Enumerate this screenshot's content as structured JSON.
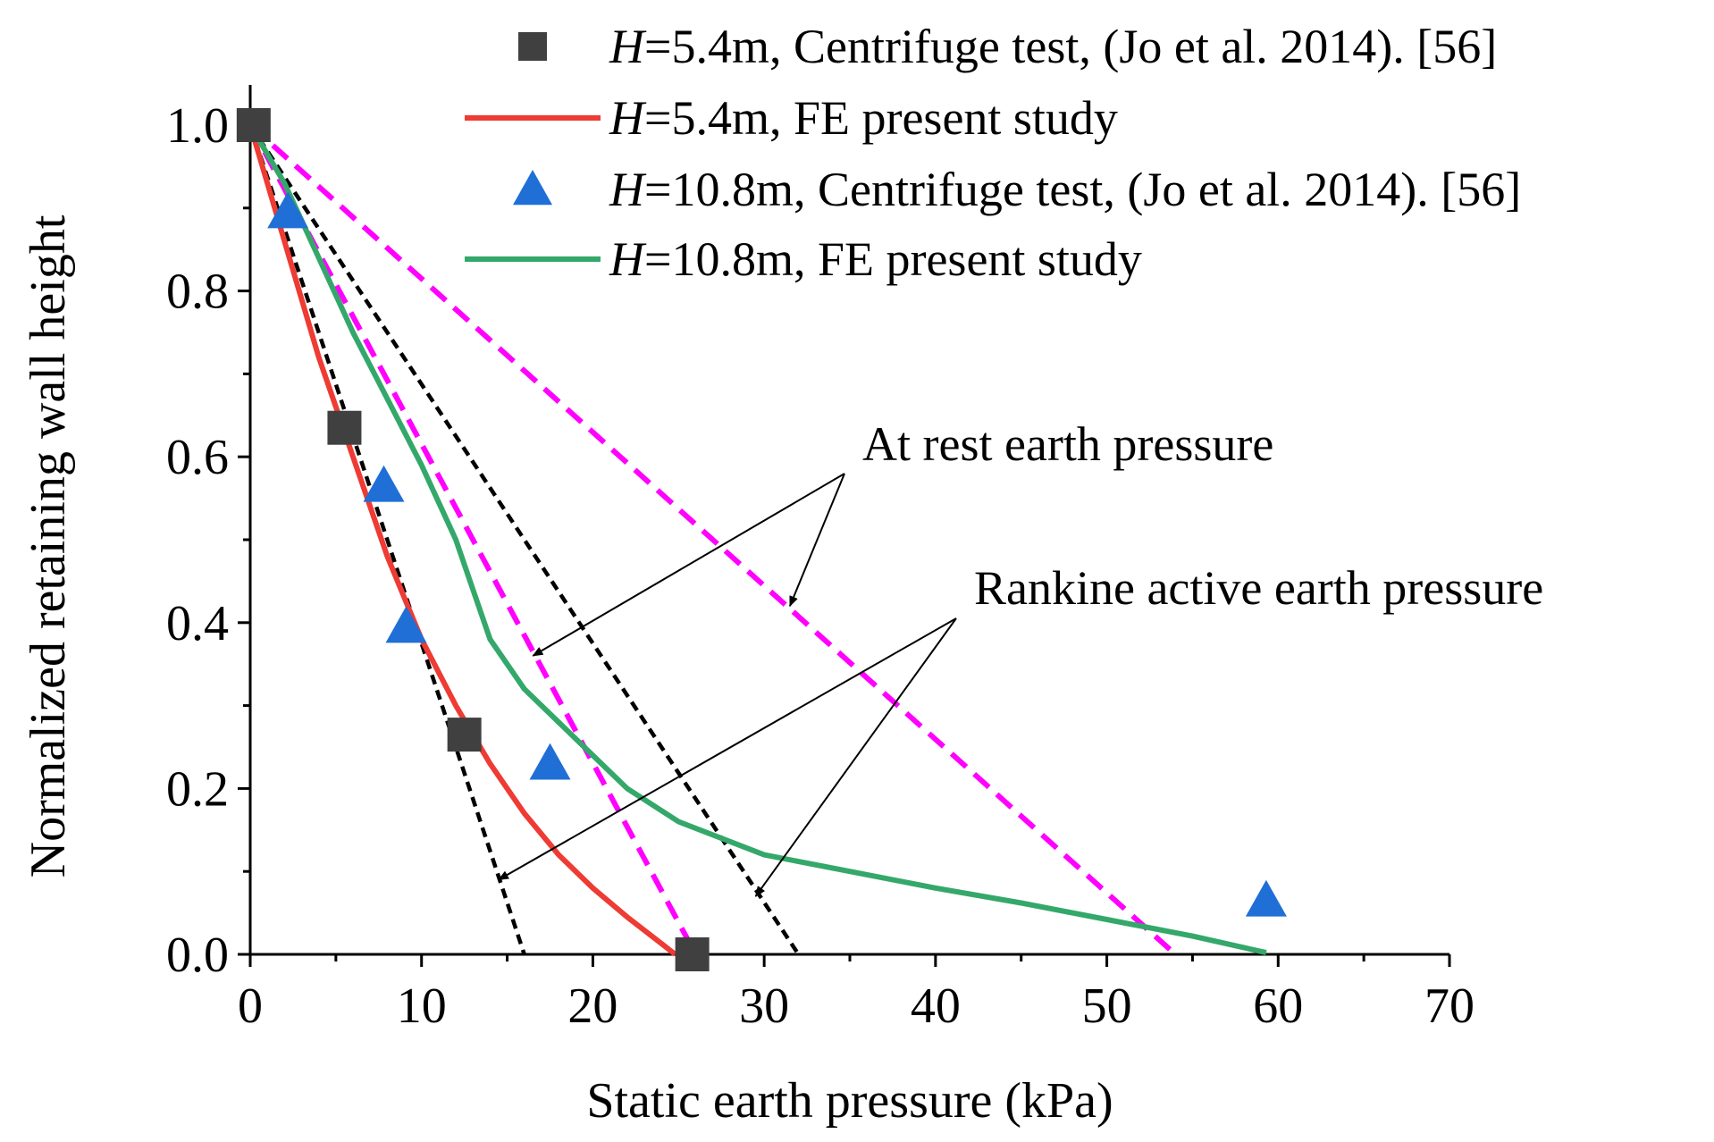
{
  "chart_data": {
    "type": "scatter+line",
    "xlabel": "Static earth pressure (kPa)",
    "ylabel": "Normalized retaining wall height",
    "xlim": [
      0,
      70
    ],
    "ylim": [
      0,
      1.0
    ],
    "xticks": [
      0,
      10,
      20,
      30,
      40,
      50,
      60,
      70
    ],
    "xtick_labels": [
      "0",
      "10",
      "20",
      "30",
      "40",
      "50",
      "60",
      "70"
    ],
    "yticks": [
      0.0,
      0.2,
      0.4,
      0.6,
      0.8,
      1.0
    ],
    "ytick_labels": [
      "0.0",
      "0.2",
      "0.4",
      "0.6",
      "0.8",
      "1.0"
    ],
    "legend": {
      "position": "top-right",
      "entries": [
        {
          "italic": "H",
          "text": "=5.4m, Centrifuge test, (Jo et al. 2014). [56]"
        },
        {
          "italic": "H",
          "text": "=5.4m, FE present study"
        },
        {
          "italic": "H",
          "text": "=10.8m, Centrifuge test, (Jo et al. 2014). [56]"
        },
        {
          "italic": "H",
          "text": "=10.8m, FE present study"
        }
      ]
    },
    "series": [
      {
        "name": "H=5.4m, Centrifuge test, (Jo et al. 2014). [56]",
        "kind": "marker-square",
        "color": "#404040",
        "points": [
          [
            0.2,
            1.0
          ],
          [
            5.5,
            0.635
          ],
          [
            12.5,
            0.265
          ],
          [
            25.8,
            0.0
          ]
        ]
      },
      {
        "name": "H=5.4m, FE present study",
        "kind": "line",
        "color": "#ee3b33",
        "points": [
          [
            0,
            1.0
          ],
          [
            1,
            0.93
          ],
          [
            2,
            0.86
          ],
          [
            3,
            0.79
          ],
          [
            4,
            0.72
          ],
          [
            5,
            0.66
          ],
          [
            6,
            0.6
          ],
          [
            7,
            0.54
          ],
          [
            8,
            0.48
          ],
          [
            9,
            0.43
          ],
          [
            10,
            0.38
          ],
          [
            12,
            0.3
          ],
          [
            14,
            0.23
          ],
          [
            16,
            0.17
          ],
          [
            18,
            0.12
          ],
          [
            20,
            0.08
          ],
          [
            22,
            0.045
          ],
          [
            24,
            0.013
          ],
          [
            24.8,
            0.0
          ]
        ]
      },
      {
        "name": "H=10.8m, Centrifuge test, (Jo et al. 2014). [56]",
        "kind": "marker-triangle",
        "color": "#1f6fd6",
        "points": [
          [
            2.2,
            0.895
          ],
          [
            7.8,
            0.565
          ],
          [
            9.1,
            0.395
          ],
          [
            17.5,
            0.23
          ],
          [
            59.3,
            0.065
          ]
        ]
      },
      {
        "name": "H=10.8m, FE present study",
        "kind": "line",
        "color": "#34a86a",
        "points": [
          [
            0,
            1.0
          ],
          [
            2,
            0.93
          ],
          [
            4,
            0.84
          ],
          [
            6,
            0.75
          ],
          [
            8,
            0.67
          ],
          [
            10,
            0.59
          ],
          [
            12,
            0.5
          ],
          [
            13,
            0.44
          ],
          [
            14,
            0.38
          ],
          [
            16,
            0.32
          ],
          [
            18,
            0.28
          ],
          [
            20,
            0.24
          ],
          [
            22,
            0.2
          ],
          [
            25,
            0.16
          ],
          [
            30,
            0.12
          ],
          [
            35,
            0.1
          ],
          [
            40,
            0.08
          ],
          [
            45,
            0.062
          ],
          [
            50,
            0.042
          ],
          [
            55,
            0.022
          ],
          [
            59.3,
            0.002
          ]
        ]
      },
      {
        "name": "At rest earth pressure (10.8m)",
        "kind": "dashed",
        "color": "#ff00ff",
        "points": [
          [
            0,
            1.0
          ],
          [
            54,
            0.0
          ]
        ]
      },
      {
        "name": "At rest earth pressure (5.4m)",
        "kind": "dashed",
        "color": "#ff00ff",
        "points": [
          [
            0,
            1.0
          ],
          [
            26,
            0.0
          ]
        ]
      },
      {
        "name": "Rankine active earth pressure (10.8m)",
        "kind": "dotted",
        "color": "#000000",
        "points": [
          [
            0,
            1.0
          ],
          [
            32,
            0.0
          ]
        ]
      },
      {
        "name": "Rankine active earth pressure (5.4m)",
        "kind": "dotted",
        "color": "#000000",
        "points": [
          [
            0,
            1.0
          ],
          [
            16,
            0.0
          ]
        ]
      }
    ],
    "annotations": [
      {
        "text": "At rest earth pressure",
        "arrow_targets": [
          [
            16.5,
            0.36
          ],
          [
            31.5,
            0.42
          ]
        ]
      },
      {
        "text": "Rankine active earth pressure",
        "arrow_targets": [
          [
            14.5,
            0.09
          ],
          [
            29.5,
            0.07
          ]
        ]
      }
    ]
  }
}
